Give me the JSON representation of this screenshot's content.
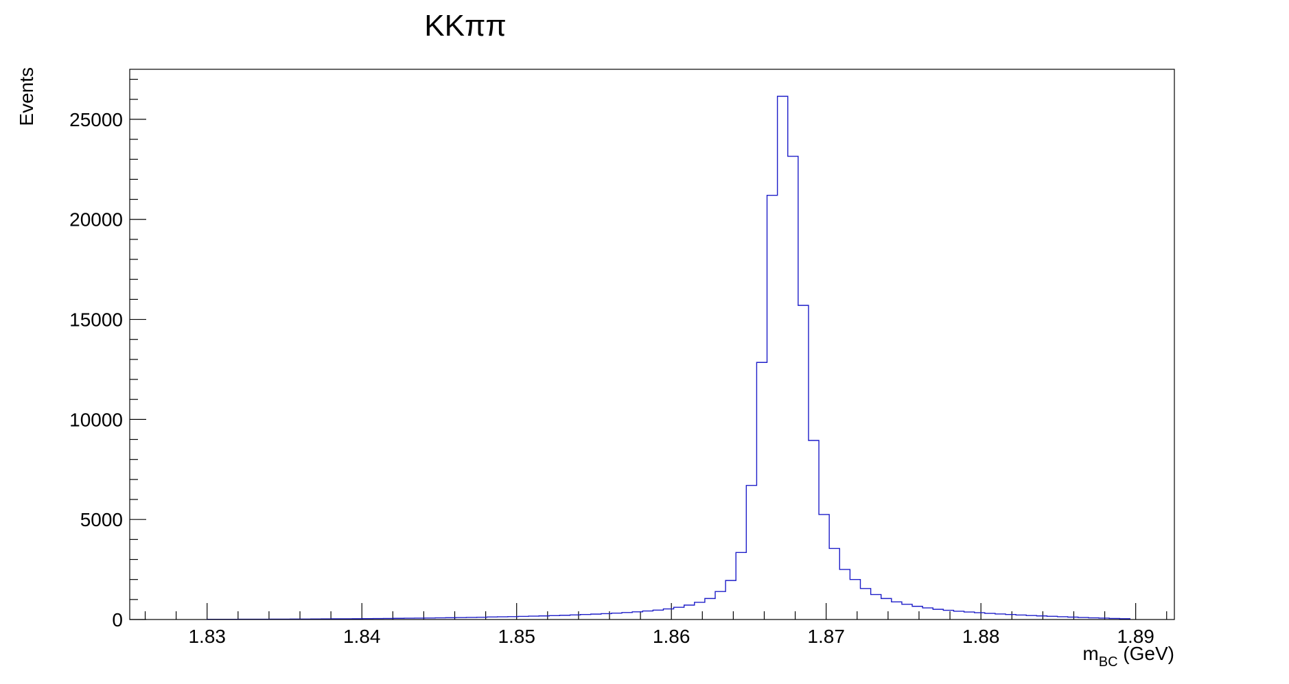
{
  "chart_data": {
    "type": "histogram",
    "title": "KKππ",
    "xlabel": {
      "main": "m",
      "sub": "BC",
      "unit": " (GeV)"
    },
    "ylabel": "Events",
    "xlim": [
      1.825,
      1.8925
    ],
    "ylim": [
      0,
      27500
    ],
    "x_ticks": [
      1.83,
      1.84,
      1.85,
      1.86,
      1.87,
      1.88,
      1.89
    ],
    "x_tick_labels": [
      "1.83",
      "1.84",
      "1.85",
      "1.86",
      "1.87",
      "1.88",
      "1.89"
    ],
    "y_ticks": [
      0,
      5000,
      10000,
      15000,
      20000,
      25000
    ],
    "y_tick_labels": [
      "0",
      "5000",
      "10000",
      "15000",
      "20000",
      "25000"
    ],
    "grid": false,
    "line_color": "#1c1cc8",
    "bin_edges_start": 1.83,
    "bin_width": 0.00067,
    "values": [
      10,
      12,
      12,
      14,
      15,
      16,
      18,
      20,
      22,
      24,
      28,
      30,
      34,
      38,
      42,
      46,
      50,
      55,
      60,
      65,
      70,
      76,
      82,
      90,
      98,
      105,
      115,
      125,
      135,
      145,
      155,
      168,
      180,
      195,
      210,
      230,
      250,
      270,
      295,
      320,
      350,
      385,
      425,
      470,
      530,
      610,
      720,
      860,
      1050,
      1400,
      1950,
      3350,
      6700,
      12850,
      21200,
      26150,
      23150,
      15700,
      8950,
      5250,
      3550,
      2500,
      2000,
      1550,
      1250,
      1050,
      880,
      760,
      660,
      580,
      510,
      460,
      415,
      375,
      340,
      305,
      275,
      250,
      225,
      200,
      180,
      160,
      140,
      120,
      100,
      85,
      70,
      55,
      40
    ]
  }
}
